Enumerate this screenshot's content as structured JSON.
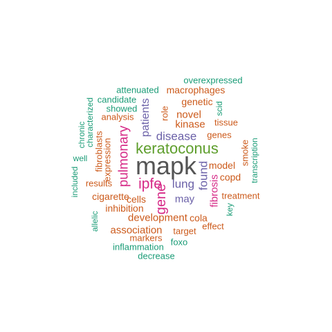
{
  "colors": {
    "gray": "#555555",
    "green": "#5e9e2c",
    "magenta": "#d62a87",
    "purple": "#6b61a8",
    "orange": "#cc5a1b",
    "teal": "#1b9c77"
  },
  "words": [
    {
      "text": "mapk",
      "color": "gray"
    },
    {
      "text": "keratoconus",
      "color": "green"
    },
    {
      "text": "ipfe",
      "color": "magenta"
    },
    {
      "text": "gene",
      "color": "magenta"
    },
    {
      "text": "pulmonary",
      "color": "magenta"
    },
    {
      "text": "disease",
      "color": "purple"
    },
    {
      "text": "lung",
      "color": "purple"
    },
    {
      "text": "found",
      "color": "purple"
    },
    {
      "text": "patients",
      "color": "purple"
    },
    {
      "text": "may",
      "color": "purple"
    },
    {
      "text": "fibrosis",
      "color": "magenta"
    },
    {
      "text": "development",
      "color": "orange"
    },
    {
      "text": "association",
      "color": "orange"
    },
    {
      "text": "inhibition",
      "color": "orange"
    },
    {
      "text": "cigarette",
      "color": "orange"
    },
    {
      "text": "results",
      "color": "orange"
    },
    {
      "text": "cells",
      "color": "orange"
    },
    {
      "text": "cola",
      "color": "orange"
    },
    {
      "text": "target",
      "color": "orange"
    },
    {
      "text": "markers",
      "color": "orange"
    },
    {
      "text": "kinase",
      "color": "orange"
    },
    {
      "text": "novel",
      "color": "orange"
    },
    {
      "text": "genetic",
      "color": "orange"
    },
    {
      "text": "genes",
      "color": "orange"
    },
    {
      "text": "tissue",
      "color": "orange"
    },
    {
      "text": "model",
      "color": "orange"
    },
    {
      "text": "copd",
      "color": "orange"
    },
    {
      "text": "treatment",
      "color": "orange"
    },
    {
      "text": "effect",
      "color": "orange"
    },
    {
      "text": "macrophages",
      "color": "orange"
    },
    {
      "text": "analysis",
      "color": "orange"
    },
    {
      "text": "role",
      "color": "orange"
    },
    {
      "text": "expression",
      "color": "orange"
    },
    {
      "text": "fibroblasts",
      "color": "orange"
    },
    {
      "text": "smoke",
      "color": "orange"
    },
    {
      "text": "overexpressed",
      "color": "teal"
    },
    {
      "text": "attenuated",
      "color": "teal"
    },
    {
      "text": "candidate",
      "color": "teal"
    },
    {
      "text": "showed",
      "color": "teal"
    },
    {
      "text": "scid",
      "color": "teal"
    },
    {
      "text": "characterized",
      "color": "teal"
    },
    {
      "text": "chronic",
      "color": "teal"
    },
    {
      "text": "well",
      "color": "teal"
    },
    {
      "text": "included",
      "color": "teal"
    },
    {
      "text": "transcription",
      "color": "teal"
    },
    {
      "text": "key",
      "color": "teal"
    },
    {
      "text": "allelic",
      "color": "teal"
    },
    {
      "text": "foxo",
      "color": "teal"
    },
    {
      "text": "inflammation",
      "color": "teal"
    },
    {
      "text": "decrease",
      "color": "teal"
    }
  ]
}
